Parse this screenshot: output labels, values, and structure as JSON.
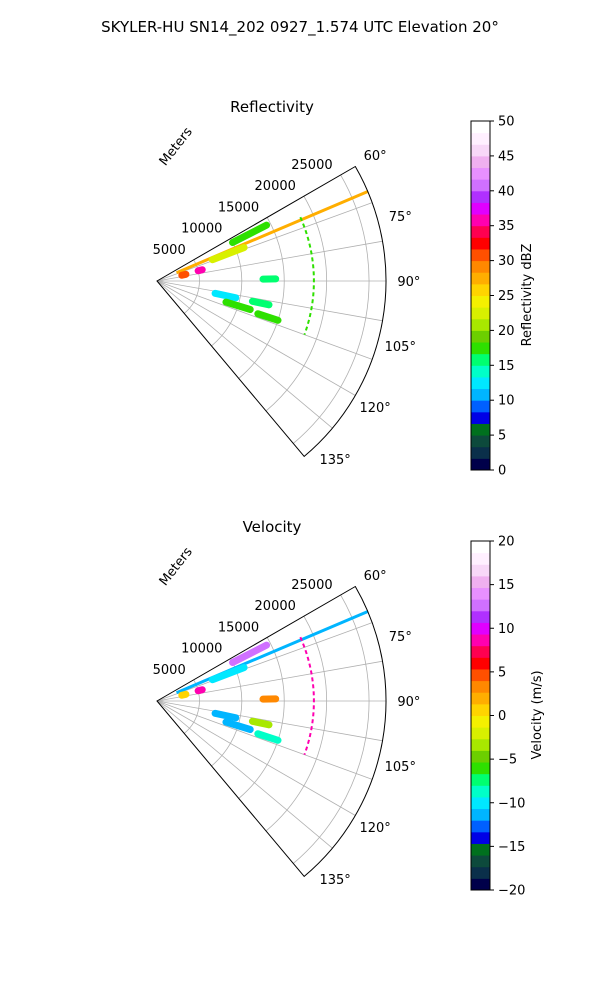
{
  "figure": {
    "title": "SKYLER-HU  SN14_202  0927_1.574 UTC Elevation 20°"
  },
  "chart_data": [
    {
      "type": "polar-sector",
      "panel": "reflectivity",
      "title": "Reflectivity",
      "radial_label": "Meters",
      "radial_ticks": [
        5000,
        10000,
        15000,
        20000,
        25000
      ],
      "radial_range": [
        0,
        27000
      ],
      "angle_ticks": [
        "60°",
        "75°",
        "90°",
        "105°",
        "120°",
        "135°"
      ],
      "angle_range_deg": [
        60,
        140
      ],
      "grid": true,
      "colorbar": {
        "label": "Reflectivity dBZ",
        "range": [
          0,
          50
        ],
        "ticks": [
          "0",
          "5",
          "10",
          "15",
          "20",
          "25",
          "30",
          "35",
          "40",
          "45",
          "50"
        ],
        "colors": [
          "#00004a",
          "#0a2f4a",
          "#0d4a3c",
          "#00701e",
          "#0000e6",
          "#0060ff",
          "#00b5ff",
          "#00e8ff",
          "#00ffc8",
          "#00ff70",
          "#2ee000",
          "#6ccf00",
          "#a8e800",
          "#d8f000",
          "#f4f000",
          "#ffd400",
          "#ffae00",
          "#ff8800",
          "#ff5000",
          "#ff0000",
          "#ff0050",
          "#ff00b0",
          "#e000ff",
          "#b030ff",
          "#d070ff",
          "#e890ff",
          "#f0b0f0",
          "#f8d8f8",
          "#fff0ff",
          "#ffffff"
        ]
      },
      "echoes": [
        {
          "az": 67,
          "r0": 2500,
          "r1": 27000,
          "dbz": 28
        },
        {
          "az": 69,
          "r0": 7000,
          "r1": 11000,
          "dbz": 22
        },
        {
          "az": 63,
          "r0": 10000,
          "r1": 14500,
          "dbz": 17
        },
        {
          "az": 102,
          "r0": 7000,
          "r1": 9500,
          "dbz": 12
        },
        {
          "az": 107,
          "r0": 8500,
          "r1": 11500,
          "dbz": 18
        },
        {
          "az": 102,
          "r0": 11500,
          "r1": 13500,
          "dbz": 15
        },
        {
          "az": 108,
          "r0": 12500,
          "r1": 15000,
          "dbz": 18
        },
        {
          "az": 89,
          "r0": 12500,
          "r1": 14000,
          "dbz": 16
        },
        {
          "az": 76,
          "r0": 5000,
          "r1": 5500,
          "dbz": 36
        },
        {
          "az": 77,
          "r0": 3000,
          "r1": 3500,
          "dbz": 30
        }
      ],
      "arc_echo": {
        "r": 18500,
        "az0": 66,
        "az1": 110,
        "dbz": 18
      }
    },
    {
      "type": "polar-sector",
      "panel": "velocity",
      "title": "Velocity",
      "radial_label": "Meters",
      "radial_ticks": [
        5000,
        10000,
        15000,
        20000,
        25000
      ],
      "radial_range": [
        0,
        27000
      ],
      "angle_ticks": [
        "60°",
        "75°",
        "90°",
        "105°",
        "120°",
        "135°"
      ],
      "angle_range_deg": [
        60,
        140
      ],
      "grid": true,
      "colorbar": {
        "label": "Velocity (m/s)",
        "range": [
          -20,
          20
        ],
        "ticks": [
          "−20",
          "−15",
          "−10",
          "−5",
          "0",
          "5",
          "10",
          "15",
          "20"
        ],
        "colors": [
          "#00004a",
          "#0a2f4a",
          "#0d4a3c",
          "#00701e",
          "#0000e6",
          "#0060ff",
          "#00b5ff",
          "#00e8ff",
          "#00ffc8",
          "#00ff70",
          "#2ee000",
          "#6ccf00",
          "#a8e800",
          "#d8f000",
          "#f4f000",
          "#ffd400",
          "#ffae00",
          "#ff8800",
          "#ff5000",
          "#ff0000",
          "#ff0050",
          "#ff00b0",
          "#e000ff",
          "#b030ff",
          "#d070ff",
          "#e890ff",
          "#f0b0f0",
          "#f8d8f8",
          "#fff0ff",
          "#ffffff"
        ]
      },
      "echoes": [
        {
          "az": 67,
          "r0": 2500,
          "r1": 27000,
          "vel": -12
        },
        {
          "az": 69,
          "r0": 7000,
          "r1": 11000,
          "vel": -10
        },
        {
          "az": 63,
          "r0": 10000,
          "r1": 14500,
          "vel": 13
        },
        {
          "az": 102,
          "r0": 7000,
          "r1": 9500,
          "vel": -12
        },
        {
          "az": 107,
          "r0": 8500,
          "r1": 11500,
          "vel": -11
        },
        {
          "az": 102,
          "r0": 11500,
          "r1": 13500,
          "vel": -4
        },
        {
          "az": 108,
          "r0": 12500,
          "r1": 15000,
          "vel": -9
        },
        {
          "az": 89,
          "r0": 12500,
          "r1": 14000,
          "vel": 3
        },
        {
          "az": 76,
          "r0": 5000,
          "r1": 5500,
          "vel": 8
        },
        {
          "az": 77,
          "r0": 3000,
          "r1": 3500,
          "vel": 1
        }
      ],
      "arc_echo": {
        "r": 18500,
        "az0": 66,
        "az1": 110,
        "vel": 9
      }
    }
  ]
}
